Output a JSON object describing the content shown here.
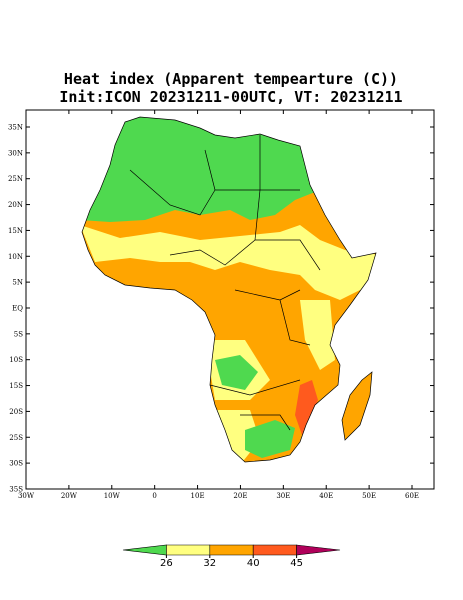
{
  "title": "Heat index (Apparent tempearture (C))",
  "subtitle": "Init:ICON 20231211-00UTC, VT: 20231211",
  "map": {
    "lat_ticks": [
      {
        "value": 35,
        "label": "35N"
      },
      {
        "value": 30,
        "label": "30N"
      },
      {
        "value": 25,
        "label": "25N"
      },
      {
        "value": 20,
        "label": "20N"
      },
      {
        "value": 15,
        "label": "15N"
      },
      {
        "value": 10,
        "label": "10N"
      },
      {
        "value": 5,
        "label": "5N"
      },
      {
        "value": 0,
        "label": "EQ"
      },
      {
        "value": -5,
        "label": "5S"
      },
      {
        "value": -10,
        "label": "10S"
      },
      {
        "value": -15,
        "label": "15S"
      },
      {
        "value": -20,
        "label": "20S"
      },
      {
        "value": -25,
        "label": "25S"
      },
      {
        "value": -30,
        "label": "30S"
      },
      {
        "value": -35,
        "label": "35S"
      }
    ],
    "lon_ticks": [
      {
        "value": -30,
        "label": "30W"
      },
      {
        "value": -20,
        "label": "20W"
      },
      {
        "value": -10,
        "label": "10W"
      },
      0,
      {
        "value": 10,
        "label": "10E"
      },
      {
        "value": 20,
        "label": "20E"
      },
      {
        "value": 30,
        "label": "30E"
      },
      {
        "value": 40,
        "label": "40E"
      },
      {
        "value": 50,
        "label": "50E"
      },
      {
        "value": 60,
        "label": "60E"
      }
    ]
  },
  "colorbar": {
    "levels": [
      26,
      32,
      40,
      45
    ],
    "colors": [
      "#4fd94f",
      "#ffff80",
      "#ffa500",
      "#ff5a1e",
      "#b0005a"
    ]
  }
}
